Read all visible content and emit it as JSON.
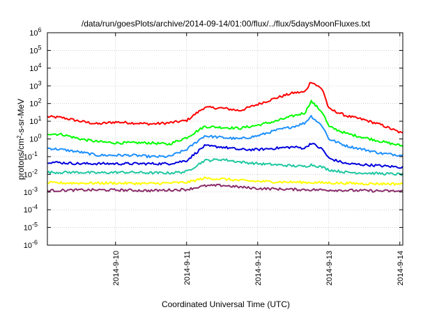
{
  "chart_data": {
    "type": "line",
    "title": "/data/run/goesPlots/archive/2014-09-14/01:00/flux/../flux/5daysMoonFluxes.txt",
    "xlabel": "Coordinated Universal Time (UTC)",
    "ylabel": {
      "prefix": "protons/cm",
      "sup": "2",
      "suffix": "-s-sr-MeV"
    },
    "y_scale": "log",
    "ylim": [
      1e-06,
      1000000.0
    ],
    "xlim": [
      "2014-09-09 01:00",
      "2014-09-14 01:00"
    ],
    "grid": true,
    "legend": "none",
    "x_ticks": [
      "2014-9-10",
      "2014-9-11",
      "2014-9-12",
      "2014-9-13",
      "2014-9-14"
    ],
    "y_ticks": [
      {
        "base": "10",
        "exp": "-6"
      },
      {
        "base": "10",
        "exp": "-5"
      },
      {
        "base": "10",
        "exp": "-4"
      },
      {
        "base": "10",
        "exp": "-3"
      },
      {
        "base": "10",
        "exp": "-2"
      },
      {
        "base": "10",
        "exp": "-1"
      },
      {
        "base": "10",
        "exp": "0"
      },
      {
        "base": "10",
        "exp": "1"
      },
      {
        "base": "10",
        "exp": "2"
      },
      {
        "base": "10",
        "exp": "3"
      },
      {
        "base": "10",
        "exp": "4"
      },
      {
        "base": "10",
        "exp": "5"
      },
      {
        "base": "10",
        "exp": "6"
      }
    ],
    "series": [
      {
        "color": "#ff0000",
        "x": [
          "2014-09-09 01:00",
          "2014-09-09 06:00",
          "2014-09-09 12:00",
          "2014-09-09 18:00",
          "2014-09-10 00:00",
          "2014-09-10 06:00",
          "2014-09-10 12:00",
          "2014-09-10 18:00",
          "2014-09-11 00:00",
          "2014-09-11 06:00",
          "2014-09-11 12:00",
          "2014-09-11 18:00",
          "2014-09-12 00:00",
          "2014-09-12 06:00",
          "2014-09-12 12:00",
          "2014-09-12 16:00",
          "2014-09-12 18:00",
          "2014-09-12 22:00",
          "2014-09-13 00:00",
          "2014-09-13 06:00",
          "2014-09-13 12:00",
          "2014-09-13 18:00",
          "2014-09-14 01:00"
        ],
        "y": [
          18,
          16,
          10,
          7,
          9,
          8,
          7,
          8,
          11,
          60,
          55,
          40,
          90,
          200,
          400,
          450,
          1800,
          600,
          50,
          20,
          12,
          6,
          2
        ]
      },
      {
        "color": "#00ff00",
        "x": [
          "2014-09-09 01:00",
          "2014-09-09 06:00",
          "2014-09-09 12:00",
          "2014-09-09 18:00",
          "2014-09-10 00:00",
          "2014-09-10 06:00",
          "2014-09-10 12:00",
          "2014-09-10 18:00",
          "2014-09-11 00:00",
          "2014-09-11 06:00",
          "2014-09-11 12:00",
          "2014-09-11 18:00",
          "2014-09-12 00:00",
          "2014-09-12 06:00",
          "2014-09-12 12:00",
          "2014-09-12 16:00",
          "2014-09-12 18:00",
          "2014-09-12 22:00",
          "2014-09-13 00:00",
          "2014-09-13 06:00",
          "2014-09-13 12:00",
          "2014-09-13 18:00",
          "2014-09-14 01:00"
        ],
        "y": [
          2,
          1.8,
          1,
          0.7,
          0.6,
          0.6,
          0.6,
          0.5,
          1.2,
          5,
          4.5,
          4,
          6,
          10,
          20,
          30,
          140,
          30,
          5,
          2,
          1.2,
          0.7,
          0.4
        ]
      },
      {
        "color": "#1e90ff",
        "x": [
          "2014-09-09 01:00",
          "2014-09-09 06:00",
          "2014-09-09 12:00",
          "2014-09-09 18:00",
          "2014-09-10 00:00",
          "2014-09-10 06:00",
          "2014-09-10 12:00",
          "2014-09-10 18:00",
          "2014-09-11 00:00",
          "2014-09-11 06:00",
          "2014-09-11 12:00",
          "2014-09-11 18:00",
          "2014-09-12 00:00",
          "2014-09-12 06:00",
          "2014-09-12 12:00",
          "2014-09-12 16:00",
          "2014-09-12 18:00",
          "2014-09-12 22:00",
          "2014-09-13 00:00",
          "2014-09-13 06:00",
          "2014-09-13 12:00",
          "2014-09-13 18:00",
          "2014-09-14 01:00"
        ],
        "y": [
          0.3,
          0.25,
          0.18,
          0.12,
          0.12,
          0.12,
          0.1,
          0.1,
          0.25,
          1.5,
          1.2,
          1,
          1.5,
          3,
          5,
          8,
          20,
          5,
          1,
          0.4,
          0.25,
          0.15,
          0.12
        ]
      },
      {
        "color": "#0000dd",
        "x": [
          "2014-09-09 01:00",
          "2014-09-09 06:00",
          "2014-09-09 12:00",
          "2014-09-09 18:00",
          "2014-09-10 00:00",
          "2014-09-10 06:00",
          "2014-09-10 12:00",
          "2014-09-10 18:00",
          "2014-09-11 00:00",
          "2014-09-11 06:00",
          "2014-09-11 12:00",
          "2014-09-11 18:00",
          "2014-09-12 00:00",
          "2014-09-12 06:00",
          "2014-09-12 12:00",
          "2014-09-12 16:00",
          "2014-09-12 18:00",
          "2014-09-12 22:00",
          "2014-09-13 00:00",
          "2014-09-13 06:00",
          "2014-09-13 12:00",
          "2014-09-13 18:00",
          "2014-09-14 01:00"
        ],
        "y": [
          0.05,
          0.045,
          0.04,
          0.04,
          0.04,
          0.04,
          0.04,
          0.04,
          0.06,
          0.4,
          0.35,
          0.25,
          0.25,
          0.3,
          0.35,
          0.3,
          0.6,
          0.25,
          0.08,
          0.04,
          0.035,
          0.03,
          0.025
        ]
      },
      {
        "color": "#20c8a0",
        "x": [
          "2014-09-09 01:00",
          "2014-09-09 06:00",
          "2014-09-09 12:00",
          "2014-09-09 18:00",
          "2014-09-10 00:00",
          "2014-09-10 06:00",
          "2014-09-10 12:00",
          "2014-09-10 18:00",
          "2014-09-11 00:00",
          "2014-09-11 06:00",
          "2014-09-11 12:00",
          "2014-09-11 18:00",
          "2014-09-12 00:00",
          "2014-09-12 06:00",
          "2014-09-12 12:00",
          "2014-09-12 16:00",
          "2014-09-12 18:00",
          "2014-09-12 22:00",
          "2014-09-13 00:00",
          "2014-09-13 06:00",
          "2014-09-13 12:00",
          "2014-09-13 18:00",
          "2014-09-14 01:00"
        ],
        "y": [
          0.013,
          0.013,
          0.013,
          0.012,
          0.013,
          0.013,
          0.012,
          0.012,
          0.014,
          0.06,
          0.07,
          0.05,
          0.04,
          0.035,
          0.03,
          0.028,
          0.035,
          0.025,
          0.018,
          0.013,
          0.012,
          0.011,
          0.01
        ]
      },
      {
        "color": "#ffff00",
        "x": [
          "2014-09-09 01:00",
          "2014-09-09 12:00",
          "2014-09-10 00:00",
          "2014-09-10 12:00",
          "2014-09-11 00:00",
          "2014-09-11 06:00",
          "2014-09-11 12:00",
          "2014-09-11 18:00",
          "2014-09-12 00:00",
          "2014-09-12 12:00",
          "2014-09-13 00:00",
          "2014-09-13 12:00",
          "2014-09-14 01:00"
        ],
        "y": [
          0.0033,
          0.0032,
          0.0032,
          0.003,
          0.0035,
          0.006,
          0.0055,
          0.0045,
          0.004,
          0.0036,
          0.0033,
          0.003,
          0.0029
        ]
      },
      {
        "color": "#8b2e6b",
        "x": [
          "2014-09-09 01:00",
          "2014-09-09 12:00",
          "2014-09-10 00:00",
          "2014-09-10 12:00",
          "2014-09-11 00:00",
          "2014-09-11 06:00",
          "2014-09-11 12:00",
          "2014-09-11 18:00",
          "2014-09-12 00:00",
          "2014-09-12 12:00",
          "2014-09-13 00:00",
          "2014-09-13 12:00",
          "2014-09-14 01:00"
        ],
        "y": [
          0.0012,
          0.0013,
          0.0013,
          0.0012,
          0.0014,
          0.0022,
          0.0024,
          0.0019,
          0.0016,
          0.0014,
          0.0013,
          0.0012,
          0.0011
        ]
      }
    ]
  }
}
